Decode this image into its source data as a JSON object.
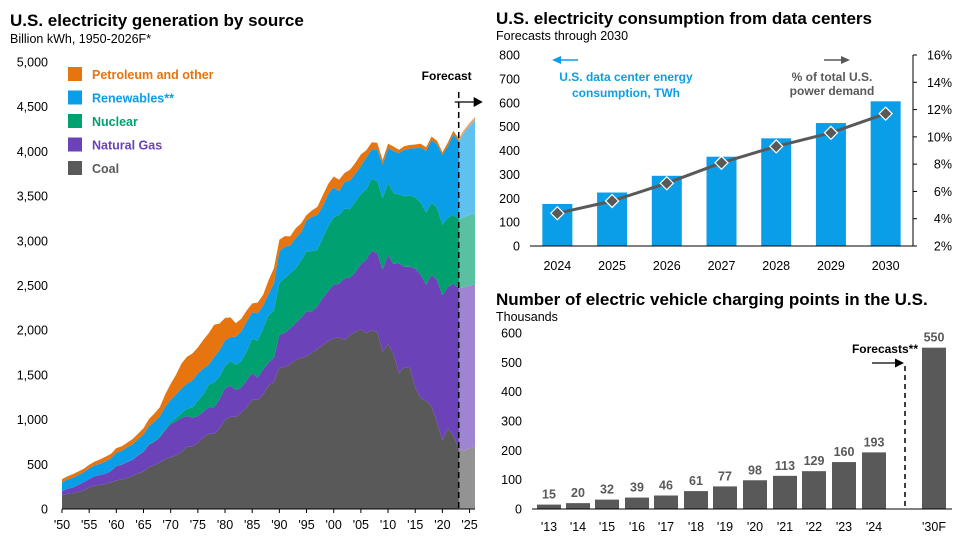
{
  "chart_data": [
    {
      "type": "area",
      "title": "U.S. electricity generation by source",
      "subtitle": "Billion kWh, 1950-2026F*",
      "stacked": true,
      "ylim": [
        0,
        5000
      ],
      "yticks": [
        "0",
        "500",
        "1,000",
        "1,500",
        "2,000",
        "2,500",
        "3,000",
        "3,500",
        "4,000",
        "4,500",
        "5,000"
      ],
      "xticks": [
        "'50",
        "'55",
        "'60",
        "'65",
        "'70",
        "'75",
        "'80",
        "'85",
        "'90",
        "'95",
        "'00",
        "'05",
        "'10",
        "'15",
        "'20",
        "'25"
      ],
      "forecast_label": "Forecast",
      "forecast_start": 2023,
      "x": [
        1950,
        1951,
        1952,
        1953,
        1954,
        1955,
        1956,
        1957,
        1958,
        1959,
        1960,
        1961,
        1962,
        1963,
        1964,
        1965,
        1966,
        1967,
        1968,
        1969,
        1970,
        1971,
        1972,
        1973,
        1974,
        1975,
        1976,
        1977,
        1978,
        1979,
        1980,
        1981,
        1982,
        1983,
        1984,
        1985,
        1986,
        1987,
        1988,
        1989,
        1990,
        1991,
        1992,
        1993,
        1994,
        1995,
        1996,
        1997,
        1998,
        1999,
        2000,
        2001,
        2002,
        2003,
        2004,
        2005,
        2006,
        2007,
        2008,
        2009,
        2010,
        2011,
        2012,
        2013,
        2014,
        2015,
        2016,
        2017,
        2018,
        2019,
        2020,
        2021,
        2022,
        2023,
        2024,
        2025,
        2026
      ],
      "series": [
        {
          "name": "Coal",
          "color": "#595959",
          "values": [
            155,
            170,
            175,
            190,
            210,
            240,
            260,
            270,
            280,
            300,
            320,
            330,
            350,
            370,
            400,
            420,
            470,
            490,
            520,
            560,
            580,
            600,
            640,
            700,
            700,
            740,
            800,
            840,
            840,
            900,
            1000,
            1030,
            1030,
            1080,
            1140,
            1220,
            1220,
            1280,
            1380,
            1420,
            1580,
            1590,
            1620,
            1670,
            1690,
            1710,
            1750,
            1790,
            1830,
            1880,
            1910,
            1920,
            1890,
            1950,
            1980,
            2010,
            1970,
            2000,
            1980,
            1760,
            1850,
            1730,
            1520,
            1590,
            1580,
            1360,
            1240,
            1210,
            1150,
            970,
            770,
            900,
            830,
            670,
            650,
            680,
            700
          ]
        },
        {
          "name": "Natural Gas",
          "color": "#6b42b8",
          "values": [
            45,
            55,
            65,
            80,
            90,
            95,
            105,
            110,
            115,
            125,
            160,
            165,
            175,
            180,
            200,
            220,
            250,
            260,
            280,
            320,
            370,
            380,
            380,
            340,
            320,
            300,
            290,
            300,
            300,
            330,
            350,
            350,
            300,
            280,
            300,
            300,
            250,
            280,
            260,
            270,
            370,
            380,
            400,
            410,
            450,
            500,
            460,
            480,
            530,
            560,
            600,
            600,
            690,
            640,
            670,
            730,
            820,
            890,
            880,
            920,
            990,
            1010,
            1230,
            1120,
            1130,
            1330,
            1380,
            1300,
            1470,
            1590,
            1620,
            1580,
            1690,
            1800,
            1830,
            1820,
            1810
          ]
        },
        {
          "name": "Nuclear",
          "color": "#00a070",
          "values": [
            0,
            0,
            0,
            0,
            0,
            0,
            0,
            0,
            0,
            1,
            1,
            2,
            2,
            3,
            3,
            4,
            6,
            8,
            13,
            14,
            22,
            38,
            54,
            83,
            114,
            173,
            191,
            251,
            276,
            255,
            251,
            273,
            283,
            294,
            327,
            384,
            414,
            455,
            527,
            529,
            577,
            613,
            619,
            610,
            640,
            673,
            675,
            629,
            674,
            728,
            754,
            769,
            780,
            764,
            788,
            782,
            787,
            806,
            806,
            799,
            807,
            790,
            769,
            789,
            797,
            797,
            805,
            805,
            807,
            809,
            790,
            778,
            772,
            775,
            782,
            790,
            795
          ]
        },
        {
          "name": "Renewables**",
          "color": "#0b9ee8",
          "values": [
            100,
            105,
            110,
            110,
            110,
            120,
            125,
            125,
            140,
            140,
            150,
            155,
            165,
            170,
            180,
            190,
            200,
            220,
            225,
            250,
            250,
            265,
            275,
            280,
            305,
            305,
            290,
            225,
            285,
            290,
            285,
            270,
            315,
            335,
            335,
            295,
            305,
            260,
            240,
            305,
            355,
            350,
            310,
            340,
            315,
            345,
            385,
            390,
            355,
            360,
            335,
            265,
            300,
            320,
            315,
            315,
            355,
            325,
            360,
            375,
            390,
            475,
            460,
            520,
            525,
            550,
            620,
            690,
            700,
            710,
            780,
            800,
            900,
            870,
            950,
            1000,
            1050
          ]
        },
        {
          "name": "Petroleum and other",
          "color": "#e6740f",
          "values": [
            35,
            35,
            40,
            40,
            40,
            40,
            40,
            50,
            50,
            50,
            50,
            50,
            50,
            60,
            60,
            70,
            80,
            90,
            100,
            140,
            180,
            220,
            280,
            300,
            300,
            290,
            320,
            350,
            360,
            300,
            250,
            220,
            150,
            140,
            120,
            100,
            120,
            120,
            150,
            170,
            130,
            120,
            100,
            110,
            100,
            60,
            70,
            90,
            120,
            110,
            120,
            130,
            100,
            120,
            120,
            130,
            80,
            80,
            70,
            50,
            50,
            50,
            40,
            40,
            40,
            40,
            40,
            40,
            40,
            40,
            30,
            40,
            40,
            30,
            30,
            30,
            30
          ]
        }
      ]
    },
    {
      "type": "bar+line",
      "title": "U.S. electricity consumption from data centers",
      "subtitle": "Forecasts through 2030",
      "categories": [
        "2024",
        "2025",
        "2026",
        "2027",
        "2028",
        "2029",
        "2030"
      ],
      "series": [
        {
          "name": "U.S. data center energy consumption, TWh",
          "axis": "left",
          "color": "#0b9ee8",
          "values": [
            176,
            224,
            294,
            374,
            451,
            515,
            606
          ]
        },
        {
          "name": "% of total U.S. power demand",
          "axis": "right",
          "color": "#595959",
          "values": [
            4.4,
            5.3,
            6.6,
            8.1,
            9.3,
            10.3,
            11.7
          ]
        }
      ],
      "ylim_left": [
        0,
        800
      ],
      "ylim_right": [
        2,
        16
      ],
      "yticks_left": [
        "0",
        "100",
        "200",
        "300",
        "400",
        "500",
        "600",
        "700",
        "800"
      ],
      "yticks_right": [
        "2%",
        "4%",
        "6%",
        "8%",
        "10%",
        "12%",
        "14%",
        "16%"
      ],
      "legend_bar": [
        "U.S. data center energy",
        "consumption, TWh"
      ],
      "legend_line": [
        "% of total U.S.",
        "power demand"
      ]
    },
    {
      "type": "bar",
      "title": "Number of electric vehicle charging points in the U.S.",
      "subtitle": "Thousands",
      "categories": [
        "'13",
        "'14",
        "'15",
        "'16",
        "'17",
        "'18",
        "'19",
        "'20",
        "'21",
        "'22",
        "'23",
        "'24",
        "'30F"
      ],
      "values": [
        15,
        20,
        32,
        39,
        46,
        61,
        77,
        98,
        113,
        129,
        160,
        193,
        550
      ],
      "ylim": [
        0,
        600
      ],
      "yticks": [
        "0",
        "100",
        "200",
        "300",
        "400",
        "500",
        "600"
      ],
      "forecast_label": "Forecasts**",
      "color": "#595959"
    }
  ]
}
